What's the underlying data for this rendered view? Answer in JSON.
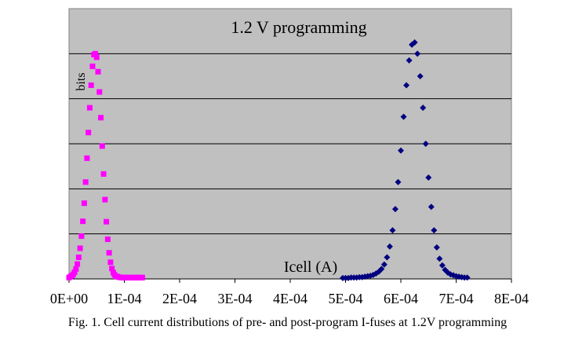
{
  "caption": "Fig. 1. Cell current distributions of pre- and post-program I-fuses at 1.2V programming",
  "chart_data": {
    "type": "scatter",
    "title": "1.2 V programming",
    "xlabel": "Icell (A)",
    "ylabel": "bits",
    "xlim": [
      0,
      0.0008
    ],
    "ylim": [
      0,
      6
    ],
    "x_tick_labels": [
      "0E+00",
      "1E-04",
      "2E-04",
      "3E-04",
      "4E-04",
      "5E-04",
      "6E-04",
      "7E-04",
      "8E-04"
    ],
    "y_tick_labels": [],
    "grid": "horizontal",
    "legend": "none",
    "background_color": "#c0c0c0",
    "series": [
      {
        "color": "#ff00ff",
        "marker": "square",
        "x": [
          0.0,
          2.5e-06,
          5e-06,
          7.5e-06,
          1e-05,
          1.25e-05,
          1.5e-05,
          1.75e-05,
          2e-05,
          2.25e-05,
          2.5e-05,
          2.75e-05,
          3e-05,
          3.25e-05,
          3.5e-05,
          3.75e-05,
          4e-05,
          4.25e-05,
          4.5e-05,
          4.75e-05,
          5e-05,
          5.25e-05,
          5.5e-05,
          5.75e-05,
          6e-05,
          6.25e-05,
          6.5e-05,
          6.75e-05,
          7e-05,
          7.25e-05,
          7.5e-05,
          7.75e-05,
          8e-05,
          8.25e-05,
          8.5e-05,
          8.75e-05,
          9e-05,
          9.25e-05,
          9.5e-05,
          9.75e-05,
          0.0001,
          0.0001025,
          0.000105,
          0.0001075,
          0.00011,
          0.0001125,
          0.000115,
          0.0001175,
          0.00012,
          0.0001225,
          0.000125,
          0.0001275,
          0.00013,
          0.0001325
        ],
        "y": [
          0.03,
          0.05,
          0.07,
          0.1,
          0.15,
          0.22,
          0.33,
          0.48,
          0.68,
          0.95,
          1.28,
          1.68,
          2.15,
          2.68,
          3.25,
          3.8,
          4.3,
          4.72,
          4.98,
          5.0,
          4.92,
          4.6,
          4.15,
          3.58,
          2.95,
          2.33,
          1.76,
          1.27,
          0.88,
          0.58,
          0.37,
          0.23,
          0.14,
          0.09,
          0.06,
          0.05,
          0.04,
          0.035,
          0.03,
          0.03,
          0.03,
          0.03,
          0.03,
          0.03,
          0.03,
          0.03,
          0.03,
          0.03,
          0.03,
          0.03,
          0.03,
          0.03,
          0.03,
          0.03
        ]
      },
      {
        "color": "#000080",
        "marker": "diamond",
        "x": [
          0.000495,
          0.0005,
          0.000505,
          0.00051,
          0.000515,
          0.00052,
          0.000525,
          0.00053,
          0.000535,
          0.00054,
          0.000545,
          0.00055,
          0.000555,
          0.00056,
          0.000565,
          0.00057,
          0.000575,
          0.00058,
          0.000585,
          0.00059,
          0.000595,
          0.0006,
          0.000605,
          0.00061,
          0.000615,
          0.00062,
          0.000625,
          0.00063,
          0.000635,
          0.00064,
          0.000645,
          0.00065,
          0.000655,
          0.00066,
          0.000665,
          0.00067,
          0.000675,
          0.00068,
          0.000685,
          0.00069,
          0.000695,
          0.0007,
          0.000705,
          0.00071,
          0.000715,
          0.00072
        ],
        "y": [
          0.02,
          0.02,
          0.02,
          0.03,
          0.03,
          0.03,
          0.04,
          0.04,
          0.05,
          0.06,
          0.07,
          0.09,
          0.12,
          0.16,
          0.22,
          0.32,
          0.48,
          0.72,
          1.08,
          1.55,
          2.15,
          2.85,
          3.6,
          4.3,
          4.85,
          5.2,
          5.25,
          5.0,
          4.5,
          3.8,
          3.0,
          2.25,
          1.6,
          1.08,
          0.7,
          0.45,
          0.3,
          0.2,
          0.14,
          0.1,
          0.08,
          0.06,
          0.05,
          0.04,
          0.03,
          0.03
        ]
      }
    ]
  }
}
